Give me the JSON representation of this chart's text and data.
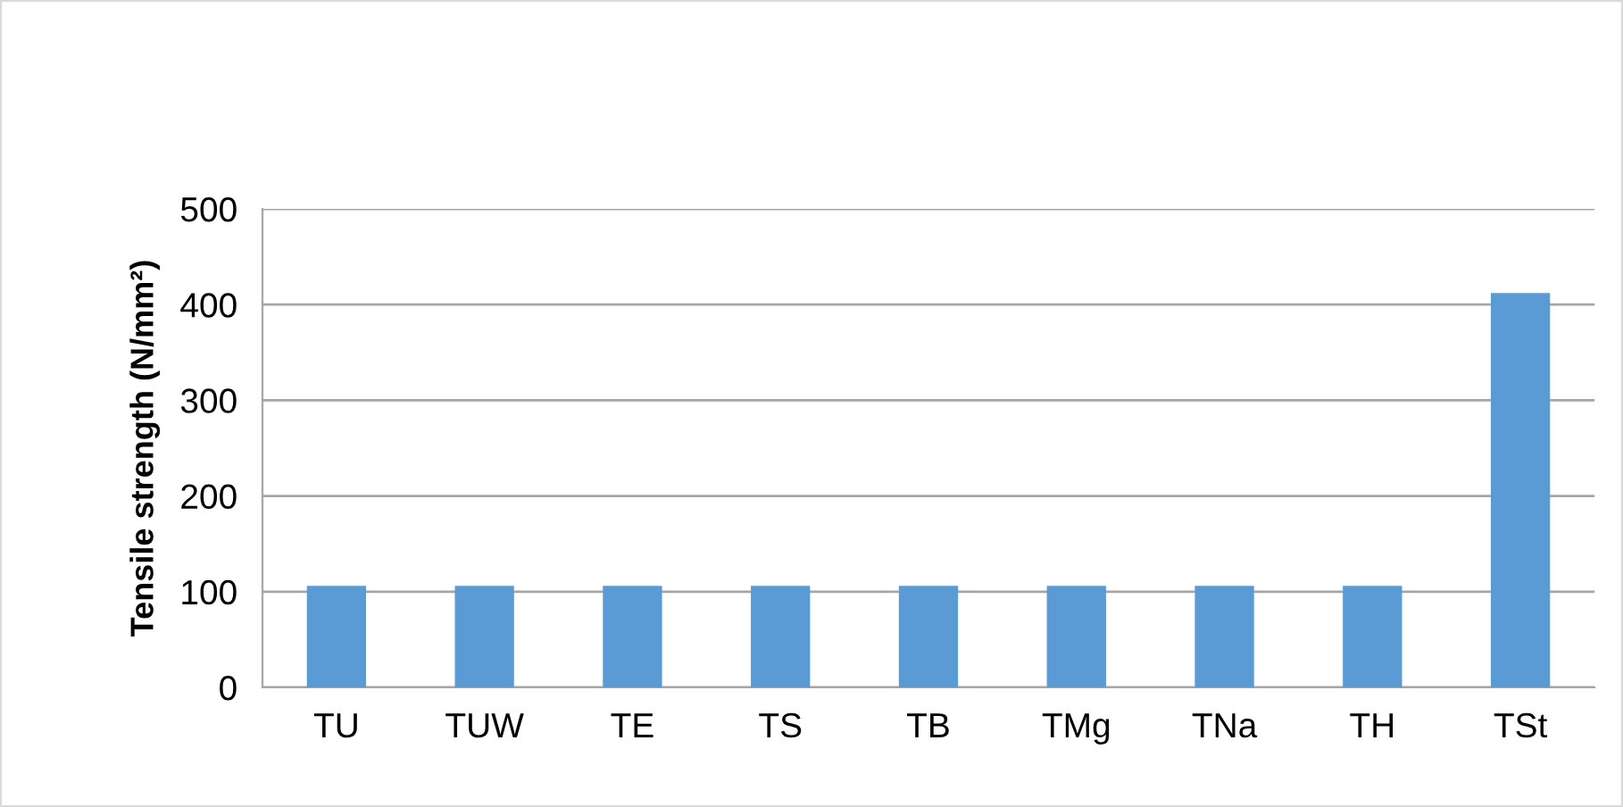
{
  "chart_data": {
    "type": "bar",
    "ylabel": "Tensile strength (N/mm²)",
    "categories": [
      "TU",
      "TUW",
      "TE",
      "TS",
      "TB",
      "TMg",
      "TNa",
      "TH",
      "TSt"
    ],
    "values": [
      106,
      106,
      106,
      106,
      106,
      106,
      106,
      106,
      412
    ],
    "color": "#5b9bd5",
    "ylim": [
      0,
      500
    ],
    "yticks": [
      0,
      100,
      200,
      300,
      400,
      500
    ],
    "grid": "y"
  }
}
